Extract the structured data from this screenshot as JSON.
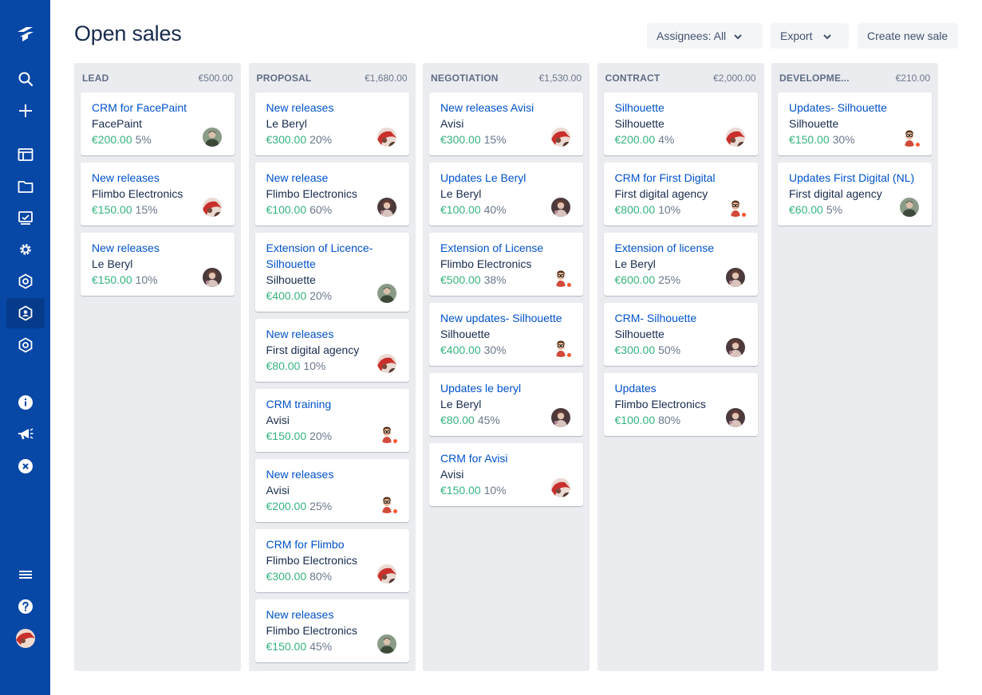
{
  "page": {
    "title": "Open sales"
  },
  "toolbar": {
    "assignees_label": "Assignees: All",
    "export_label": "Export",
    "create_label": "Create new sale"
  },
  "sidebar": {
    "top_icons": [
      "logo-icon",
      "search-icon",
      "plus-icon"
    ],
    "middle_icons": [
      "board-icon",
      "folder-icon",
      "reports-icon",
      "gear-icon",
      "hexagon-icon",
      "hexagon-user-icon",
      "hexagon-icon"
    ],
    "bottom_icons": [
      "info-icon",
      "megaphone-icon",
      "close-circle-icon",
      "menu-icon",
      "help-icon",
      "avatar"
    ]
  },
  "columns": [
    {
      "name": "LEAD",
      "total": "€500.00",
      "cards": [
        {
          "title": [
            "CRM for FacePaint"
          ],
          "company": "FacePaint",
          "amount": "€200.00",
          "prob": "5%",
          "avatar": "man"
        },
        {
          "title": [
            "New releases"
          ],
          "company": "Flimbo Electronics",
          "amount": "€150.00",
          "prob": "15%",
          "avatar": "red"
        },
        {
          "title": [
            "New releases"
          ],
          "company": "Le Beryl",
          "amount": "€150.00",
          "prob": "10%",
          "avatar": "woman"
        }
      ]
    },
    {
      "name": "PROPOSAL",
      "total": "€1,680.00",
      "cards": [
        {
          "title": [
            "New releases"
          ],
          "company": "Le Beryl",
          "amount": "€300.00",
          "prob": "20%",
          "avatar": "red"
        },
        {
          "title": [
            "New release"
          ],
          "company": "Flimbo Electronics",
          "amount": "€100.00",
          "prob": "60%",
          "avatar": "woman"
        },
        {
          "title": [
            "Extension of Licence-",
            "Silhouette"
          ],
          "company": "Silhouette",
          "amount": "€400.00",
          "prob": "20%",
          "avatar": "man"
        },
        {
          "title": [
            "New releases"
          ],
          "company": "First digital agency",
          "amount": "€80.00",
          "prob": "10%",
          "avatar": "red"
        },
        {
          "title": [
            "CRM training"
          ],
          "company": "Avisi",
          "amount": "€150.00",
          "prob": "20%",
          "avatar": "glasses"
        },
        {
          "title": [
            "New releases"
          ],
          "company": "Avisi",
          "amount": "€200.00",
          "prob": "25%",
          "avatar": "glasses"
        },
        {
          "title": [
            "CRM for Flimbo"
          ],
          "company": "Flimbo Electronics",
          "amount": "€300.00",
          "prob": "80%",
          "avatar": "red"
        },
        {
          "title": [
            "New releases"
          ],
          "company": "Flimbo Electronics",
          "amount": "€150.00",
          "prob": "45%",
          "avatar": "man"
        }
      ]
    },
    {
      "name": "NEGOTIATION",
      "total": "€1,530.00",
      "cards": [
        {
          "title": [
            "New releases Avisi"
          ],
          "company": "Avisi",
          "amount": "€300.00",
          "prob": "15%",
          "avatar": "red"
        },
        {
          "title": [
            "Updates Le Beryl"
          ],
          "company": "Le Beryl",
          "amount": "€100.00",
          "prob": "40%",
          "avatar": "woman"
        },
        {
          "title": [
            "Extension of License"
          ],
          "company": "Flimbo Electronics",
          "amount": "€500.00",
          "prob": "38%",
          "avatar": "glasses"
        },
        {
          "title": [
            "New updates- Silhouette"
          ],
          "company": "Silhouette",
          "amount": "€400.00",
          "prob": "30%",
          "avatar": "glasses"
        },
        {
          "title": [
            "Updates le beryl"
          ],
          "company": "Le Beryl",
          "amount": "€80.00",
          "prob": "45%",
          "avatar": "woman"
        },
        {
          "title": [
            "CRM for Avisi"
          ],
          "company": "Avisi",
          "amount": "€150.00",
          "prob": "10%",
          "avatar": "red"
        }
      ]
    },
    {
      "name": "CONTRACT",
      "total": "€2,000.00",
      "cards": [
        {
          "title": [
            "Silhouette"
          ],
          "company": "Silhouette",
          "amount": "€200.00",
          "prob": "4%",
          "avatar": "red"
        },
        {
          "title": [
            "CRM for First Digital"
          ],
          "company": "First digital agency",
          "amount": "€800.00",
          "prob": "10%",
          "avatar": "glasses"
        },
        {
          "title": [
            "Extension of license"
          ],
          "company": "Le Beryl",
          "amount": "€600.00",
          "prob": "25%",
          "avatar": "woman"
        },
        {
          "title": [
            "CRM- Silhouette"
          ],
          "company": "Silhouette",
          "amount": "€300.00",
          "prob": "50%",
          "avatar": "woman"
        },
        {
          "title": [
            "Updates"
          ],
          "company": "Flimbo Electronics",
          "amount": "€100.00",
          "prob": "80%",
          "avatar": "woman"
        }
      ]
    },
    {
      "name": "DEVELOPME...",
      "total": "€210.00",
      "cards": [
        {
          "title": [
            "Updates- Silhouette"
          ],
          "company": "Silhouette",
          "amount": "€150.00",
          "prob": "30%",
          "avatar": "glasses"
        },
        {
          "title": [
            "Updates First Digital (NL)"
          ],
          "company": "First digital agency",
          "amount": "€60.00",
          "prob": "5%",
          "avatar": "man"
        }
      ]
    }
  ],
  "colors": {
    "sidebar_bg": "#0747a6",
    "link_blue": "#0052cc",
    "amount_green": "#36b37e",
    "column_bg": "#ebecf0",
    "presence_dot": "#ff5630"
  }
}
